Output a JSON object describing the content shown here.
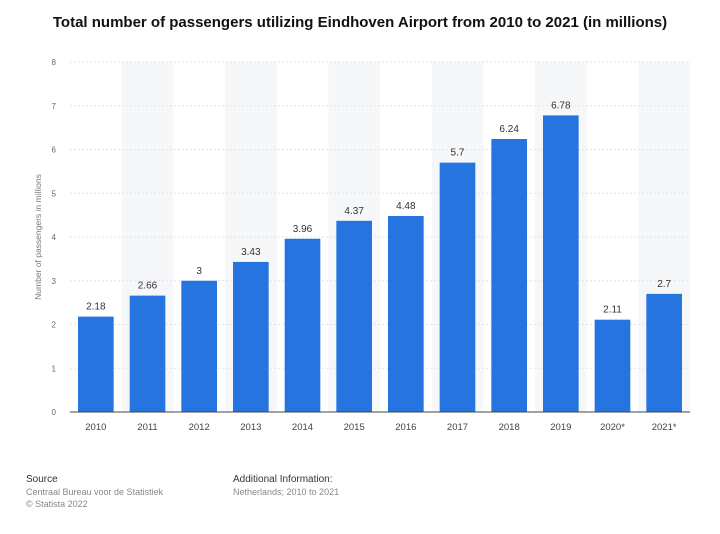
{
  "chart_data": {
    "type": "bar",
    "title": "Total number of passengers utilizing Eindhoven Airport from 2010 to 2021 (in millions)",
    "xlabel": "",
    "ylabel": "Number of passengers in millions",
    "categories": [
      "2010",
      "2011",
      "2012",
      "2013",
      "2014",
      "2015",
      "2016",
      "2017",
      "2018",
      "2019",
      "2020*",
      "2021*"
    ],
    "values": [
      2.18,
      2.66,
      3,
      3.43,
      3.96,
      4.37,
      4.48,
      5.7,
      6.24,
      6.78,
      2.11,
      2.7
    ],
    "value_labels": [
      "2.18",
      "2.66",
      "3",
      "3.43",
      "3.96",
      "4.37",
      "4.48",
      "5.7",
      "6.24",
      "6.78",
      "2.11",
      "2.7"
    ],
    "yticks": [
      "0",
      "1",
      "2",
      "3",
      "4",
      "5",
      "6",
      "7",
      "8"
    ],
    "ylim": [
      0,
      8
    ],
    "grid": true,
    "bar_color": "#2574e0"
  },
  "footer": {
    "source_heading": "Source",
    "source_lines": [
      "Centraal Bureau voor de Statistiek",
      "© Statista 2022"
    ],
    "additional_heading": "Additional Information:",
    "additional_line": "Netherlands; 2010 to 2021"
  }
}
